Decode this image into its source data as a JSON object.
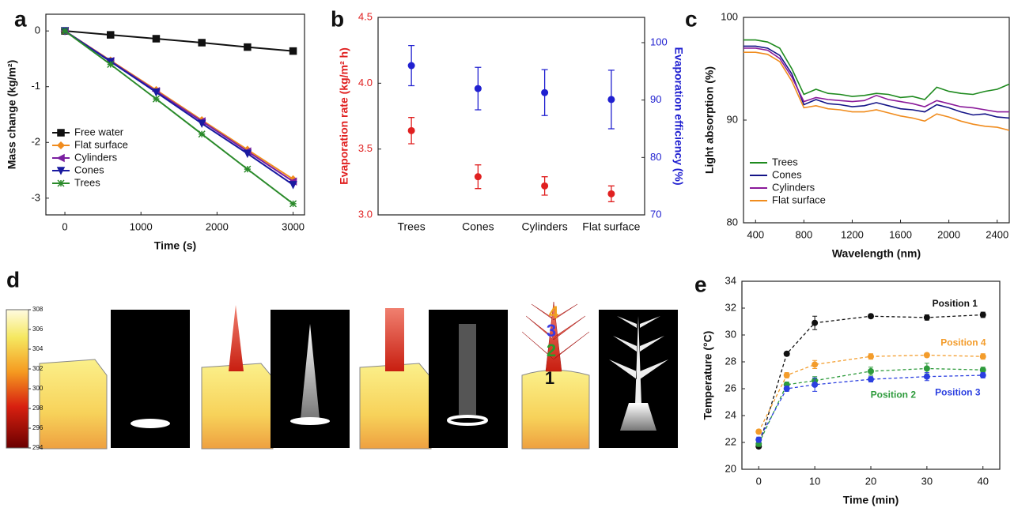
{
  "chart_data": [
    {
      "label": "a",
      "type": "line",
      "x_label": "Time (s)",
      "y_label": "Mass change (kg/m²)",
      "x": [
        0,
        600,
        1200,
        1800,
        2400,
        3000
      ],
      "series": [
        {
          "name": "Free water",
          "color": "#111111",
          "marker": "square",
          "values": [
            0,
            -0.07,
            -0.14,
            -0.21,
            -0.29,
            -0.36
          ]
        },
        {
          "name": "Flat surface",
          "color": "#f08c1e",
          "marker": "diamond",
          "values": [
            0,
            -0.53,
            -1.06,
            -1.6,
            -2.13,
            -2.66
          ]
        },
        {
          "name": "Cylinders",
          "color": "#7a1fa0",
          "marker": "triangle-left",
          "values": [
            0,
            -0.54,
            -1.08,
            -1.62,
            -2.16,
            -2.7
          ]
        },
        {
          "name": "Cones",
          "color": "#1a1aa0",
          "marker": "triangle-down",
          "values": [
            0,
            -0.55,
            -1.1,
            -1.66,
            -2.2,
            -2.76
          ]
        },
        {
          "name": "Trees",
          "color": "#2a8a2a",
          "marker": "star",
          "values": [
            0,
            -0.6,
            -1.22,
            -1.85,
            -2.48,
            -3.1
          ]
        }
      ],
      "xlim": [
        -250,
        3150
      ],
      "ylim": [
        -3.3,
        0.3
      ],
      "xticks": [
        0,
        1000,
        2000,
        3000
      ],
      "yticks": [
        -3,
        -2,
        -1,
        0
      ],
      "legend": "lower left"
    },
    {
      "label": "b",
      "type": "errorbar",
      "y_label": "Evaporation rate (kg/m² h)",
      "y2_label": "Evaporation efficiency (%)",
      "categories": [
        "Trees",
        "Cones",
        "Cylinders",
        "Flat surface"
      ],
      "series": [
        {
          "color": "#e02020",
          "values": [
            3.64,
            3.29,
            3.22,
            3.16
          ],
          "errors": [
            0.1,
            0.09,
            0.07,
            0.06
          ]
        },
        {
          "color": "#2020d0",
          "axis": "y2",
          "values": [
            96,
            92,
            91.3,
            90.1
          ],
          "errors": [
            3.5,
            3.7,
            4.0,
            5.1
          ]
        }
      ],
      "ylim": [
        3,
        4.5
      ],
      "yticks": [
        {
          "value": 3,
          "label": "3.0"
        },
        {
          "value": 3.5,
          "label": "3.5"
        },
        {
          "value": 4,
          "label": "4.0"
        },
        {
          "value": 4.5,
          "label": "4.5"
        }
      ],
      "y2lim": [
        70,
        104.4
      ],
      "y2ticks": [
        70,
        80,
        90,
        100
      ]
    },
    {
      "label": "c",
      "type": "line",
      "x_label": "Wavelength (nm)",
      "y_label": "Light absorption (%)",
      "x": [
        300,
        400,
        500,
        600,
        700,
        800,
        900,
        1000,
        1100,
        1200,
        1300,
        1400,
        1500,
        1600,
        1700,
        1800,
        1900,
        2000,
        2100,
        2200,
        2300,
        2400,
        2500
      ],
      "series": [
        {
          "name": "Trees",
          "color": "#1e8a1e",
          "values": [
            97.8,
            97.8,
            97.6,
            97,
            95,
            92.5,
            93,
            92.6,
            92.5,
            92.3,
            92.4,
            92.6,
            92.5,
            92.2,
            92.3,
            92,
            93.2,
            92.8,
            92.6,
            92.5,
            92.8,
            93,
            93.5
          ]
        },
        {
          "name": "Cones",
          "color": "#141487",
          "values": [
            97.2,
            97.2,
            97,
            96.3,
            94.5,
            91.5,
            92,
            91.6,
            91.5,
            91.3,
            91.4,
            91.7,
            91.4,
            91.1,
            91,
            90.8,
            91.5,
            91.2,
            90.8,
            90.5,
            90.6,
            90.3,
            90.2
          ]
        },
        {
          "name": "Cylinders",
          "color": "#8a1a9a",
          "values": [
            97,
            97,
            96.8,
            96,
            94.2,
            91.8,
            92.2,
            92,
            91.9,
            91.8,
            91.9,
            92.4,
            92,
            91.8,
            91.6,
            91.3,
            91.9,
            91.6,
            91.3,
            91.2,
            91,
            90.8,
            90.8
          ]
        },
        {
          "name": "Flat surface",
          "color": "#f08c1e",
          "values": [
            96.6,
            96.6,
            96.4,
            95.7,
            93.8,
            91.2,
            91.4,
            91.1,
            91,
            90.8,
            90.8,
            91,
            90.7,
            90.4,
            90.2,
            89.9,
            90.6,
            90.3,
            89.9,
            89.6,
            89.4,
            89.3,
            89
          ]
        }
      ],
      "xlim": [
        300,
        2500
      ],
      "ylim": [
        80,
        100
      ],
      "xticks": [
        400,
        800,
        1200,
        1600,
        2000,
        2400
      ],
      "yticks": [
        80,
        90,
        100
      ],
      "legend": "lower left"
    },
    {
      "label": "d",
      "type": "colorbar",
      "ylim": [
        294,
        308
      ],
      "yticks": [
        294,
        296,
        298,
        300,
        302,
        304,
        306,
        308
      ],
      "annotations": [
        "1",
        "2",
        "3",
        "4"
      ]
    },
    {
      "label": "e",
      "type": "errorbar_line",
      "x_label": "Time (min)",
      "y_label": "Temperature (°C)",
      "x": [
        0,
        5,
        10,
        20,
        30,
        40
      ],
      "series": [
        {
          "name": "Position 1",
          "color": "#111111",
          "values": [
            21.7,
            28.6,
            30.9,
            31.4,
            31.3,
            31.5
          ],
          "errors": [
            0.15,
            0.15,
            0.5,
            0.15,
            0.2,
            0.2
          ]
        },
        {
          "name": "Position 2",
          "color": "#2e9b3c",
          "values": [
            21.9,
            26.3,
            26.6,
            27.3,
            27.5,
            27.4
          ],
          "errors": [
            0.2,
            0.2,
            0.3,
            0.3,
            0.4,
            0.2
          ]
        },
        {
          "name": "Position 3",
          "color": "#2b3fe0",
          "values": [
            22.2,
            26.0,
            26.3,
            26.7,
            26.9,
            27.0
          ],
          "errors": [
            0.2,
            0.2,
            0.5,
            0.2,
            0.3,
            0.2
          ]
        },
        {
          "name": "Position 4",
          "color": "#f39c2b",
          "values": [
            22.8,
            27.0,
            27.8,
            28.4,
            28.5,
            28.4
          ],
          "errors": [
            0.15,
            0.2,
            0.3,
            0.2,
            0.15,
            0.2
          ]
        }
      ],
      "xlim": [
        -3,
        43
      ],
      "ylim": [
        20,
        34
      ],
      "xticks": [
        0,
        10,
        20,
        30,
        40
      ],
      "yticks": [
        20,
        22,
        24,
        26,
        28,
        30,
        32,
        34
      ]
    }
  ]
}
